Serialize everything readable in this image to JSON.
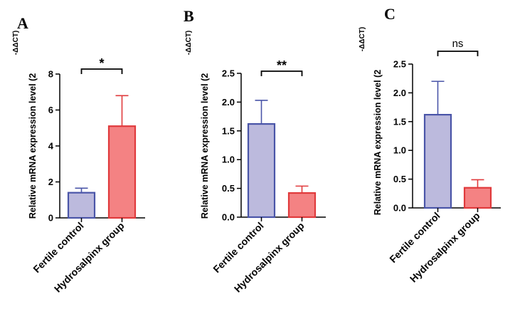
{
  "chart_data": [
    {
      "panel": "A",
      "type": "bar",
      "ylabel": "Relative mRNA expression level (2",
      "ylabel_sup": "-ΔΔCT)",
      "ylim": [
        0,
        8
      ],
      "yticks": [
        0,
        2,
        4,
        6,
        8
      ],
      "ytick_labels": [
        "0",
        "2",
        "4",
        "6",
        "8"
      ],
      "categories": [
        "Fertile control",
        "Hydrosalpinx group"
      ],
      "values": [
        1.4,
        5.1
      ],
      "errors": [
        0.25,
        1.7
      ],
      "significance": "*"
    },
    {
      "panel": "B",
      "type": "bar",
      "ylabel": "Relative mRNA expression level (2",
      "ylabel_sup": "-ΔΔCT)",
      "ylim": [
        0,
        2.5
      ],
      "yticks": [
        0,
        0.5,
        1,
        1.5,
        2,
        2.5
      ],
      "ytick_labels": [
        "0.0",
        "0.5",
        "1.0",
        "1.5",
        "2.0",
        "2.5"
      ],
      "categories": [
        "Fertile control",
        "Hydrosalpinx group"
      ],
      "values": [
        1.62,
        0.42
      ],
      "errors": [
        0.41,
        0.12
      ],
      "significance": "**"
    },
    {
      "panel": "C",
      "type": "bar",
      "ylabel": "Relative mRNA expression level (2",
      "ylabel_sup": "-ΔΔCT)",
      "ylim": [
        0,
        2.5
      ],
      "yticks": [
        0,
        0.5,
        1,
        1.5,
        2,
        2.5
      ],
      "ytick_labels": [
        "0.0",
        "0.5",
        "1.0",
        "1.5",
        "2.0",
        "2.5"
      ],
      "categories": [
        "Fertile control",
        "Hydrosalpinx group"
      ],
      "values": [
        1.62,
        0.35
      ],
      "errors": [
        0.58,
        0.14
      ],
      "significance": "ns"
    }
  ],
  "colors": {
    "control_fill": "#bcbadd",
    "control_stroke": "#4a55a8",
    "hydro_fill": "#f48283",
    "hydro_stroke": "#e03a3c",
    "axis": "#000000"
  }
}
